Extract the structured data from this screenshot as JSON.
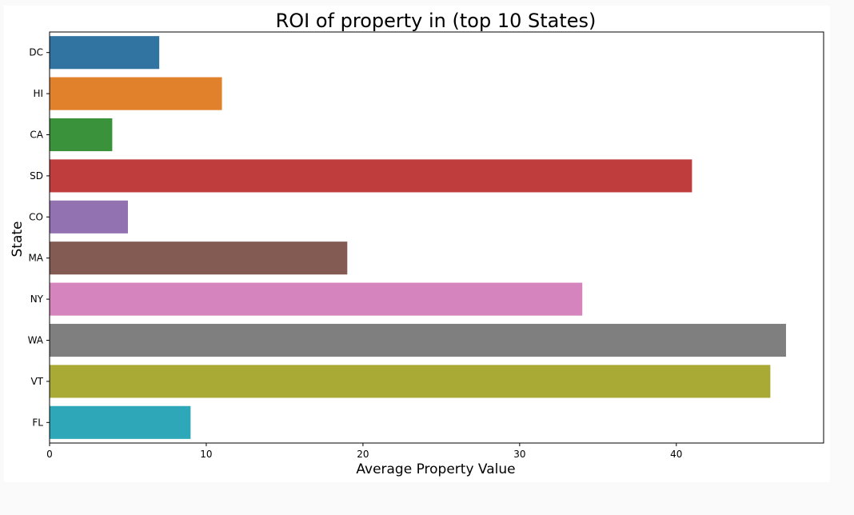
{
  "chart_data": {
    "type": "bar",
    "orientation": "horizontal",
    "title": "ROI of property in (top 10 States)",
    "xlabel": "Average Property Value",
    "ylabel": "State",
    "xlim": [
      0,
      49.4
    ],
    "xticks": [
      0,
      10,
      20,
      30,
      40
    ],
    "grid": false,
    "categories": [
      "DC",
      "HI",
      "CA",
      "SD",
      "CO",
      "MA",
      "NY",
      "WA",
      "VT",
      "FL"
    ],
    "values": [
      7,
      11,
      4,
      41,
      5,
      19,
      34,
      47,
      46,
      9
    ],
    "colors": [
      "#3274a1",
      "#e1812c",
      "#3a923a",
      "#c03d3e",
      "#9372b2",
      "#845b53",
      "#d684bd",
      "#7f7f7f",
      "#a9aa35",
      "#2ea8b8"
    ]
  }
}
